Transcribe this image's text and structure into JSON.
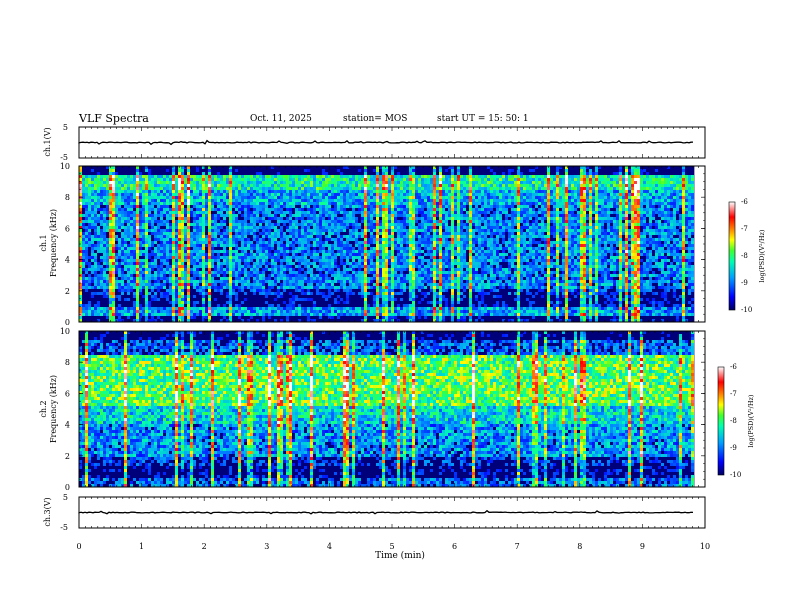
{
  "header": {
    "title": "VLF Spectra",
    "date": "Oct. 11, 2025",
    "station": "station= MOS",
    "start_ut": "start  UT =   15: 50: 1"
  },
  "colors": {
    "background": "#ffffff",
    "axis": "#000000",
    "colormap": [
      "#000080",
      "#0000ff",
      "#00b0ff",
      "#00ffaa",
      "#40ff40",
      "#ffff00",
      "#ff8000",
      "#ff0000",
      "#ffffff"
    ]
  },
  "chart_data": [
    {
      "type": "line",
      "name": "ch1-waveform",
      "ylabel": "ch.1(V)",
      "ylim": [
        -5,
        5
      ],
      "y_ticks": [
        "5",
        "-5"
      ],
      "xlim": [
        0,
        10
      ],
      "level": 0,
      "note_series": "flat trace near 0 V with small spikes"
    },
    {
      "type": "heatmap",
      "name": "ch1-spectrogram",
      "ylabel_top": "ch.1",
      "ylabel": "Frequency (kHz)",
      "ylim": [
        0,
        10
      ],
      "y_ticks": [
        "0",
        "2",
        "4",
        "6",
        "8",
        "10"
      ],
      "xlim": [
        0,
        10
      ],
      "data_end_min": 9.83,
      "colorbar": {
        "label": "log(PSD)(V²/Hz)",
        "range": [
          -10,
          -6
        ],
        "ticks": [
          "-6",
          "-7",
          "-8",
          "-9",
          "-10"
        ]
      }
    },
    {
      "type": "heatmap",
      "name": "ch2-spectrogram",
      "ylabel_top": "ch.2",
      "ylabel": "Frequency (kHz)",
      "ylim": [
        0,
        10
      ],
      "y_ticks": [
        "0",
        "2",
        "4",
        "6",
        "8",
        "10"
      ],
      "xlim": [
        0,
        10
      ],
      "data_end_min": 9.83,
      "colorbar": {
        "label": "log(PSD)(V²/Hz)",
        "range": [
          -10,
          -6
        ],
        "ticks": [
          "-6",
          "-7",
          "-8",
          "-9",
          "-10"
        ]
      }
    },
    {
      "type": "line",
      "name": "ch3-waveform",
      "ylabel": "ch.3(V)",
      "ylim": [
        -5,
        5
      ],
      "y_ticks": [
        "5",
        "-5"
      ],
      "xlim": [
        0,
        10
      ],
      "level": 0,
      "xlabel": "Time  (min)",
      "x_ticks": [
        "0",
        "1",
        "2",
        "3",
        "4",
        "5",
        "6",
        "7",
        "8",
        "9",
        "10"
      ]
    }
  ]
}
